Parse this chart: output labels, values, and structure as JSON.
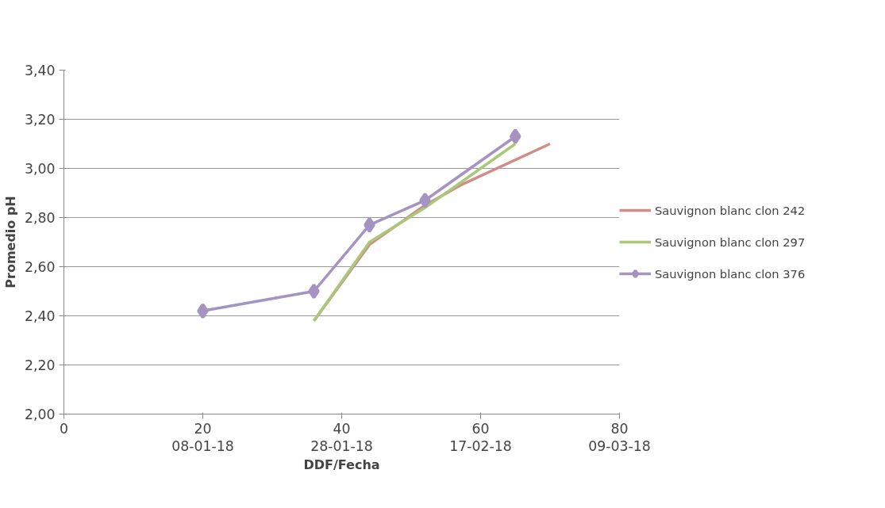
{
  "chart_data": {
    "type": "line",
    "xlabel": "DDF/Fecha",
    "ylabel": "Promedio pH",
    "xlim": [
      0,
      80
    ],
    "xticks": [
      0,
      20,
      40,
      60,
      80
    ],
    "x2lim": [
      "2017-12-19",
      "2018-03-09"
    ],
    "x2ticks": [
      {
        "value": "2018-01-08",
        "label": "08-01-18"
      },
      {
        "value": "2018-01-28",
        "label": "28-01-18"
      },
      {
        "value": "2018-02-17",
        "label": "17-02-18"
      },
      {
        "value": "2018-03-09",
        "label": "09-03-18"
      }
    ],
    "ylim": [
      2.0,
      3.4
    ],
    "yticks": [
      {
        "value": 2.0,
        "label": "2,00"
      },
      {
        "value": 2.2,
        "label": "2,20"
      },
      {
        "value": 2.4,
        "label": "2,40"
      },
      {
        "value": 2.6,
        "label": "2,60"
      },
      {
        "value": 2.8,
        "label": "2,80"
      },
      {
        "value": 3.0,
        "label": "3,00"
      },
      {
        "value": 3.2,
        "label": "3,20"
      },
      {
        "value": 3.4,
        "label": "3,40"
      }
    ],
    "grid": "y",
    "legend": "right",
    "series": [
      {
        "name": "Sauvignon blanc clon 242",
        "color": "#d08c88",
        "x": [
          36,
          44,
          52,
          57,
          70
        ],
        "values": [
          2.38,
          2.69,
          2.85,
          2.93,
          3.1
        ]
      },
      {
        "name": "Sauvignon blanc clon 297",
        "color": "#a9c878",
        "x": [
          36,
          44,
          52,
          65
        ],
        "values": [
          2.38,
          2.7,
          2.84,
          3.1
        ]
      },
      {
        "name": "Sauvignon blanc clon 376",
        "color": "#a593c2",
        "marker": "diamond",
        "x": [
          20,
          36,
          44,
          52,
          65
        ],
        "values": [
          2.42,
          2.5,
          2.77,
          2.87,
          3.13
        ]
      }
    ]
  }
}
